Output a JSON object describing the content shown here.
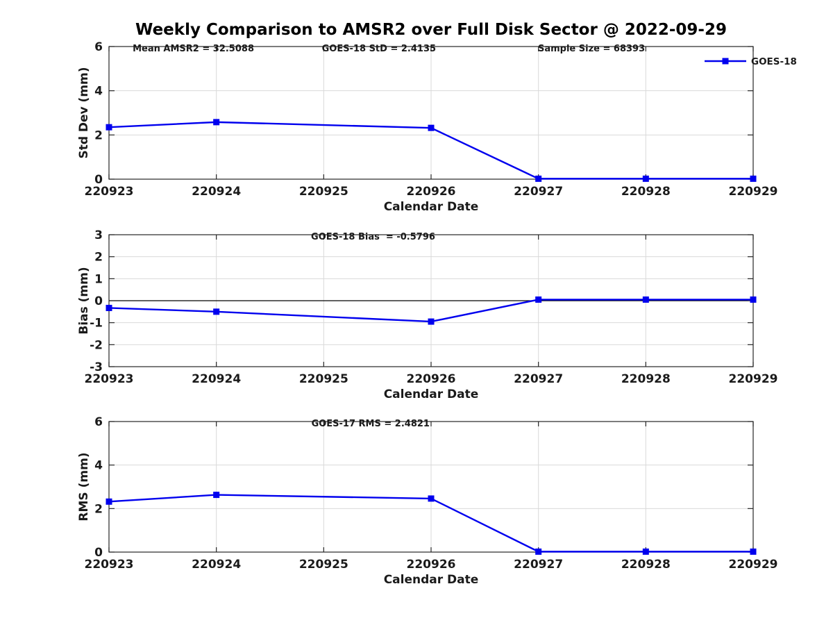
{
  "figure": {
    "title": "Weekly Comparison to AMSR2 over Full Disk Sector @ 2022-09-29"
  },
  "colors": {
    "line": "#0000ee",
    "marker": "#0000ee",
    "grid": "#d9d9d9",
    "axis": "#262626",
    "zero_line": "#000000",
    "text": "#1a1a1a"
  },
  "chart_data": [
    {
      "id": "std-dev",
      "type": "line",
      "categories": [
        "220923",
        "220924",
        "220925",
        "220926",
        "220927",
        "220928",
        "220929"
      ],
      "xlabel": "Calendar Date",
      "ylabel": "Std Dev (mm)",
      "ylim": [
        0,
        6
      ],
      "yticks": [
        0,
        2,
        4,
        6
      ],
      "grid": true,
      "zero_line": false,
      "annotations": [
        "Mean AMSR2 = 32.5088",
        "GOES-18 StD = 2.4135",
        "Sample Size = 68393"
      ],
      "legend": {
        "label": "GOES-18",
        "position": "top-right",
        "marker": "square"
      },
      "series": [
        {
          "name": "GOES-18",
          "marker": "square",
          "x": [
            "220923",
            "220924",
            "220926",
            "220927",
            "220928",
            "220929"
          ],
          "values": [
            2.35,
            2.58,
            2.32,
            0.02,
            0.02,
            0.02
          ]
        }
      ]
    },
    {
      "id": "bias",
      "type": "line",
      "categories": [
        "220923",
        "220924",
        "220925",
        "220926",
        "220927",
        "220928",
        "220929"
      ],
      "xlabel": "Calendar Date",
      "ylabel": "Bias (mm)",
      "ylim": [
        -3,
        3
      ],
      "yticks": [
        -3,
        -2,
        -1,
        0,
        1,
        2,
        3
      ],
      "grid": true,
      "zero_line": true,
      "annotations": [
        "GOES-18 Bias  = -0.5796"
      ],
      "legend": null,
      "series": [
        {
          "name": "GOES-18",
          "marker": "square",
          "x": [
            "220923",
            "220924",
            "220926",
            "220927",
            "220928",
            "220929"
          ],
          "values": [
            -0.33,
            -0.5,
            -0.95,
            0.05,
            0.05,
            0.05
          ]
        }
      ]
    },
    {
      "id": "rms",
      "type": "line",
      "categories": [
        "220923",
        "220924",
        "220925",
        "220926",
        "220927",
        "220928",
        "220929"
      ],
      "xlabel": "Calendar Date",
      "ylabel": "RMS (mm)",
      "ylim": [
        0,
        6
      ],
      "yticks": [
        0,
        2,
        4,
        6
      ],
      "grid": true,
      "zero_line": false,
      "annotations": [
        "GOES-17 RMS = 2.4821"
      ],
      "legend": null,
      "series": [
        {
          "name": "GOES-18",
          "marker": "square",
          "x": [
            "220923",
            "220924",
            "220926",
            "220927",
            "220928",
            "220929"
          ],
          "values": [
            2.32,
            2.63,
            2.46,
            0.02,
            0.02,
            0.02
          ]
        }
      ]
    }
  ]
}
